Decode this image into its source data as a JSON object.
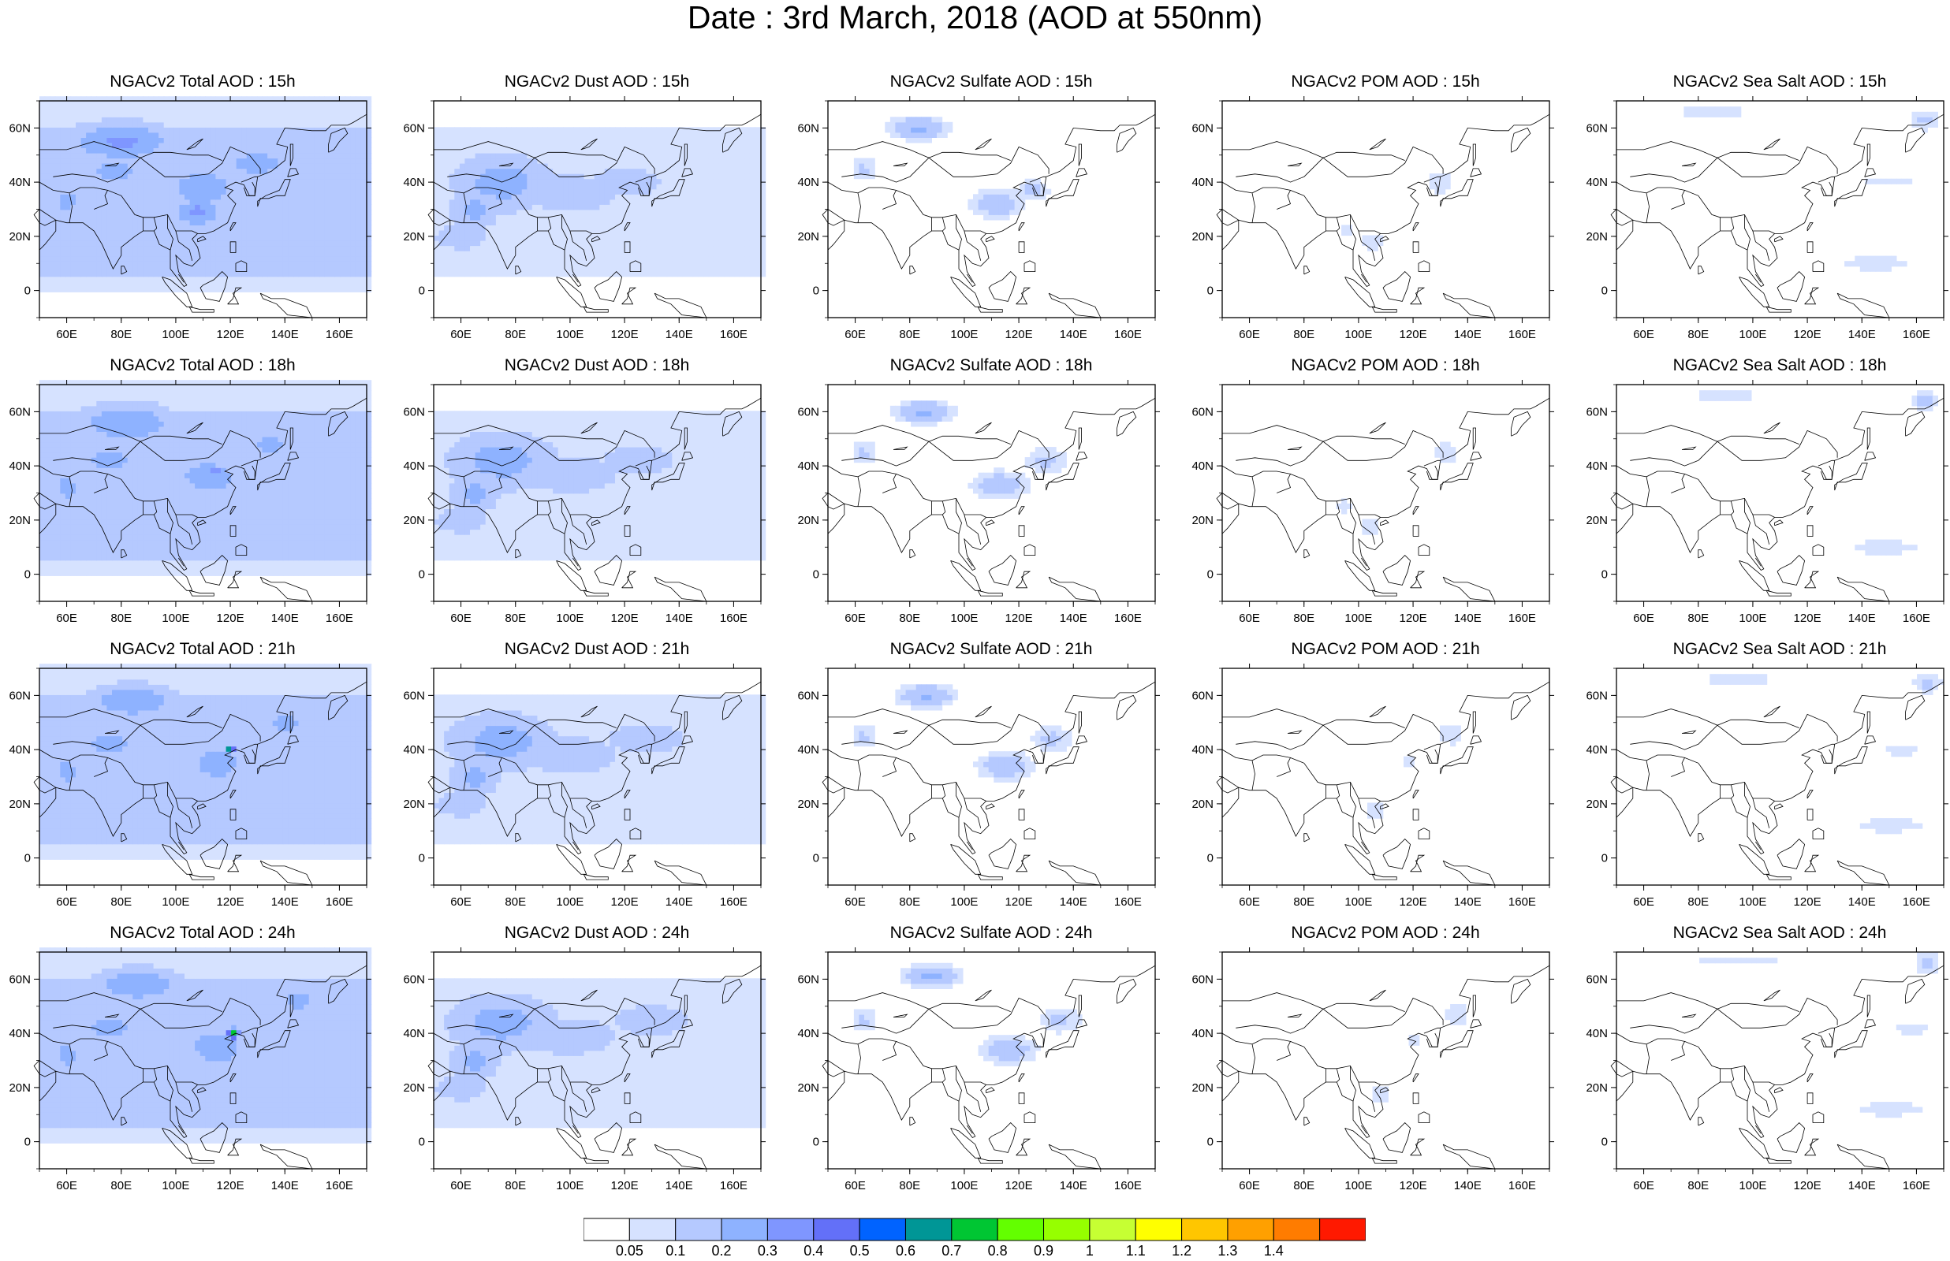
{
  "title": "Date : 3rd March, 2018 (AOD at 550nm)",
  "map_axes": {
    "lon_ticks": [
      "60E",
      "80E",
      "100E",
      "120E",
      "140E",
      "160E"
    ],
    "lat_ticks": [
      "60N",
      "40N",
      "20N",
      "0"
    ]
  },
  "panels": [
    {
      "title": "NGACv2 Total AOD : 15h",
      "species": "total",
      "hour": 15,
      "fields": [
        [
          80,
          55,
          22,
          8,
          0.32
        ],
        [
          110,
          38,
          16,
          10,
          0.27
        ],
        [
          108,
          29,
          10,
          6,
          0.33
        ],
        [
          78,
          44,
          20,
          10,
          0.22
        ],
        [
          60,
          33,
          10,
          10,
          0.22
        ],
        [
          130,
          47,
          18,
          8,
          0.24
        ],
        [
          100,
          20,
          10,
          5,
          0.2
        ],
        [
          120,
          10,
          20,
          4,
          0.12
        ],
        [
          140,
          20,
          12,
          5,
          0.12
        ]
      ],
      "base": 0.15
    },
    {
      "title": "NGACv2 Dust AOD : 15h",
      "species": "dust",
      "hour": 15,
      "fields": [
        [
          75,
          40,
          20,
          12,
          0.25
        ],
        [
          65,
          30,
          10,
          8,
          0.24
        ],
        [
          100,
          36,
          20,
          8,
          0.2
        ],
        [
          120,
          40,
          20,
          8,
          0.15
        ],
        [
          60,
          20,
          12,
          6,
          0.18
        ]
      ],
      "base": 0.08
    },
    {
      "title": "NGACv2 Sulfate AOD : 15h",
      "species": "sulfate",
      "hour": 15,
      "fields": [
        [
          83,
          60,
          10,
          4,
          0.22
        ],
        [
          112,
          32,
          10,
          5,
          0.17
        ],
        [
          125,
          37,
          6,
          4,
          0.13
        ],
        [
          63,
          45,
          5,
          5,
          0.11
        ]
      ],
      "base": 0.0
    },
    {
      "title": "NGACv2 POM AOD : 15h",
      "species": "pom",
      "hour": 15,
      "fields": [
        [
          105,
          18,
          4,
          4,
          0.1
        ],
        [
          130,
          40,
          5,
          5,
          0.09
        ],
        [
          96,
          22,
          3,
          3,
          0.09
        ]
      ],
      "base": 0.0
    },
    {
      "title": "NGACv2 Sea Salt AOD : 15h",
      "species": "seasalt",
      "hour": 15,
      "fields": [
        [
          163,
          63,
          5,
          4,
          0.12
        ],
        [
          145,
          10,
          15,
          3,
          0.09
        ],
        [
          85,
          66,
          20,
          2,
          0.08
        ],
        [
          150,
          40,
          12,
          2,
          0.08
        ]
      ],
      "base": 0.0
    },
    {
      "title": "NGACv2 Total AOD : 18h",
      "species": "total",
      "hour": 18,
      "fields": [
        [
          82,
          56,
          20,
          8,
          0.3
        ],
        [
          112,
          36,
          14,
          8,
          0.28
        ],
        [
          115,
          38,
          4,
          3,
          0.35
        ],
        [
          76,
          42,
          20,
          10,
          0.22
        ],
        [
          60,
          32,
          10,
          10,
          0.22
        ],
        [
          135,
          48,
          15,
          8,
          0.22
        ],
        [
          95,
          20,
          10,
          6,
          0.2
        ],
        [
          130,
          12,
          15,
          4,
          0.12
        ]
      ],
      "base": 0.15
    },
    {
      "title": "NGACv2 Dust AOD : 18h",
      "species": "dust",
      "hour": 18,
      "fields": [
        [
          75,
          42,
          22,
          12,
          0.25
        ],
        [
          65,
          30,
          10,
          8,
          0.24
        ],
        [
          100,
          37,
          20,
          8,
          0.2
        ],
        [
          125,
          42,
          20,
          8,
          0.15
        ],
        [
          60,
          20,
          12,
          6,
          0.18
        ]
      ],
      "base": 0.08
    },
    {
      "title": "NGACv2 Sulfate AOD : 18h",
      "species": "sulfate",
      "hour": 18,
      "fields": [
        [
          85,
          60,
          10,
          4,
          0.22
        ],
        [
          113,
          33,
          10,
          5,
          0.17
        ],
        [
          130,
          42,
          8,
          5,
          0.12
        ],
        [
          63,
          45,
          5,
          5,
          0.11
        ]
      ],
      "base": 0.0
    },
    {
      "title": "NGACv2 POM AOD : 18h",
      "species": "pom",
      "hour": 18,
      "fields": [
        [
          104,
          18,
          4,
          4,
          0.1
        ],
        [
          132,
          45,
          5,
          5,
          0.09
        ],
        [
          95,
          25,
          3,
          3,
          0.09
        ]
      ],
      "base": 0.0
    },
    {
      "title": "NGACv2 Sea Salt AOD : 18h",
      "species": "seasalt",
      "hour": 18,
      "fields": [
        [
          163,
          64,
          5,
          4,
          0.13
        ],
        [
          148,
          10,
          15,
          3,
          0.09
        ],
        [
          90,
          66,
          20,
          2,
          0.08
        ]
      ],
      "base": 0.0
    },
    {
      "title": "NGACv2 Total AOD : 21h",
      "species": "total",
      "hour": 21,
      "fields": [
        [
          84,
          58,
          18,
          7,
          0.3
        ],
        [
          115,
          35,
          12,
          8,
          0.28
        ],
        [
          120,
          40,
          2,
          1.5,
          0.75
        ],
        [
          76,
          42,
          20,
          10,
          0.22
        ],
        [
          60,
          32,
          10,
          10,
          0.22
        ],
        [
          140,
          50,
          15,
          8,
          0.22
        ],
        [
          97,
          20,
          10,
          6,
          0.2
        ],
        [
          130,
          12,
          15,
          4,
          0.12
        ]
      ],
      "base": 0.15
    },
    {
      "title": "NGACv2 Dust AOD : 21h",
      "species": "dust",
      "hour": 21,
      "fields": [
        [
          75,
          43,
          22,
          12,
          0.25
        ],
        [
          65,
          30,
          10,
          8,
          0.24
        ],
        [
          100,
          38,
          20,
          8,
          0.2
        ],
        [
          128,
          44,
          20,
          8,
          0.16
        ],
        [
          60,
          20,
          12,
          6,
          0.18
        ]
      ],
      "base": 0.08
    },
    {
      "title": "NGACv2 Sulfate AOD : 21h",
      "species": "sulfate",
      "hour": 21,
      "fields": [
        [
          86,
          60,
          10,
          4,
          0.22
        ],
        [
          115,
          34,
          10,
          5,
          0.17
        ],
        [
          132,
          44,
          8,
          5,
          0.12
        ],
        [
          63,
          45,
          5,
          5,
          0.11
        ]
      ],
      "base": 0.0
    },
    {
      "title": "NGACv2 POM AOD : 21h",
      "species": "pom",
      "hour": 21,
      "fields": [
        [
          106,
          18,
          4,
          4,
          0.1
        ],
        [
          134,
          46,
          5,
          5,
          0.09
        ],
        [
          118,
          35,
          3,
          3,
          0.09
        ]
      ],
      "base": 0.0
    },
    {
      "title": "NGACv2 Sea Salt AOD : 21h",
      "species": "seasalt",
      "hour": 21,
      "fields": [
        [
          164,
          65,
          5,
          4,
          0.13
        ],
        [
          150,
          12,
          15,
          3,
          0.09
        ],
        [
          95,
          66,
          20,
          2,
          0.08
        ],
        [
          155,
          40,
          8,
          3,
          0.08
        ]
      ],
      "base": 0.0
    },
    {
      "title": "NGACv2 Total AOD : 24h",
      "species": "total",
      "hour": 24,
      "fields": [
        [
          86,
          58,
          18,
          7,
          0.3
        ],
        [
          115,
          35,
          12,
          8,
          0.3
        ],
        [
          121,
          40,
          2.5,
          2,
          0.75
        ],
        [
          76,
          42,
          20,
          10,
          0.22
        ],
        [
          60,
          32,
          10,
          10,
          0.22
        ],
        [
          145,
          52,
          15,
          8,
          0.22
        ],
        [
          100,
          20,
          10,
          6,
          0.2
        ],
        [
          132,
          14,
          15,
          4,
          0.12
        ]
      ],
      "base": 0.15
    },
    {
      "title": "NGACv2 Dust AOD : 24h",
      "species": "dust",
      "hour": 24,
      "fields": [
        [
          75,
          44,
          22,
          12,
          0.25
        ],
        [
          65,
          30,
          10,
          8,
          0.24
        ],
        [
          100,
          39,
          20,
          8,
          0.2
        ],
        [
          130,
          45,
          20,
          8,
          0.16
        ],
        [
          60,
          20,
          12,
          6,
          0.18
        ]
      ],
      "base": 0.08
    },
    {
      "title": "NGACv2 Sulfate AOD : 24h",
      "species": "sulfate",
      "hour": 24,
      "fields": [
        [
          88,
          61,
          10,
          4,
          0.22
        ],
        [
          116,
          34,
          10,
          5,
          0.17
        ],
        [
          135,
          45,
          8,
          5,
          0.12
        ],
        [
          63,
          45,
          5,
          5,
          0.11
        ]
      ],
      "base": 0.0
    },
    {
      "title": "NGACv2 POM AOD : 24h",
      "species": "pom",
      "hour": 24,
      "fields": [
        [
          108,
          18,
          4,
          4,
          0.1
        ],
        [
          136,
          47,
          5,
          5,
          0.09
        ],
        [
          120,
          38,
          3,
          3,
          0.09
        ]
      ],
      "base": 0.0
    },
    {
      "title": "NGACv2 Sea Salt  AOD : 24h",
      "species": "seasalt",
      "hour": 24,
      "fields": [
        [
          164,
          66,
          5,
          4,
          0.13
        ],
        [
          150,
          12,
          15,
          3,
          0.09
        ],
        [
          95,
          67,
          20,
          2,
          0.08
        ],
        [
          158,
          42,
          8,
          3,
          0.08
        ]
      ],
      "base": 0.0
    }
  ],
  "colorbar": {
    "labels": [
      "0.05",
      "0.1",
      "0.2",
      "0.3",
      "0.4",
      "0.5",
      "0.6",
      "0.7",
      "0.8",
      "0.9",
      "1",
      "1.1",
      "1.2",
      "1.3",
      "1.4"
    ],
    "thresholds": [
      0.05,
      0.1,
      0.2,
      0.3,
      0.4,
      0.5,
      0.6,
      0.7,
      0.8,
      0.9,
      1.0,
      1.1,
      1.2,
      1.3,
      1.4
    ],
    "colors": [
      "#ffffff",
      "#d6e2ff",
      "#b5c9ff",
      "#8eb2ff",
      "#7f96ff",
      "#6370f8",
      "#0063ff",
      "#009696",
      "#00c633",
      "#63ff00",
      "#96ff00",
      "#c6ff33",
      "#ffff00",
      "#ffc600",
      "#ffa000",
      "#ff7c00",
      "#ff1900"
    ]
  },
  "chart_data": {
    "type": "heatmap",
    "title": "Date : 3rd March, 2018 (AOD at 550nm)",
    "xlabel": "",
    "ylabel": "",
    "x_range": [
      "50E",
      "170E"
    ],
    "y_range": [
      "10S",
      "70N"
    ],
    "x_ticks": [
      "60E",
      "80E",
      "100E",
      "120E",
      "140E",
      "160E"
    ],
    "y_ticks": [
      "0",
      "20N",
      "40N",
      "60N"
    ]
  }
}
